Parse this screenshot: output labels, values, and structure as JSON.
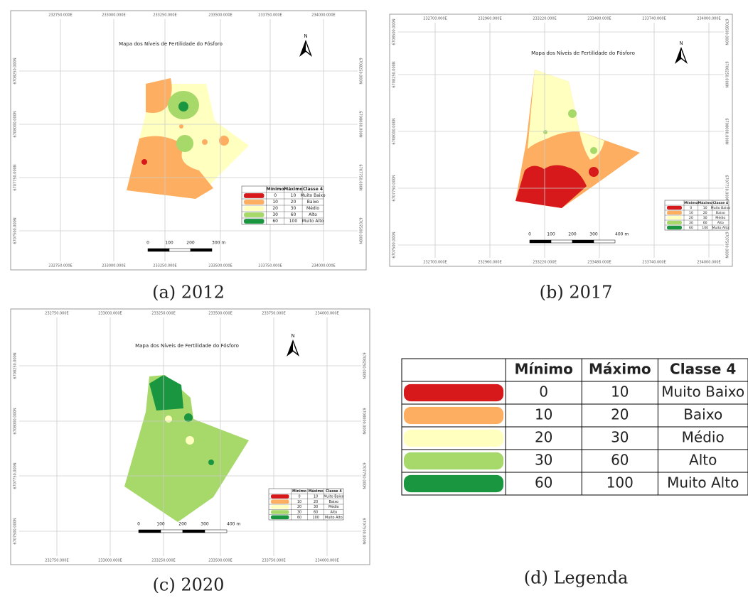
{
  "panels": [
    {
      "title": "Mapa dos Níveis de Fertilidade do Fósforo",
      "north": "N",
      "top_labels": [
        "232750.000E",
        "233000.000E",
        "233250.000E",
        "233500.000E",
        "233750.000E",
        "234000.000E"
      ],
      "side_labels": [
        "6708250.000N",
        "6708000.000N",
        "6707750.000N",
        "6707500.000N"
      ],
      "scale_labels": [
        "0",
        "100",
        "200",
        "300 m"
      ],
      "caption": "(a) 2012"
    },
    {
      "title": "Mapa dos Níveis de Fertilidade do Fósforo",
      "north": "N",
      "top_labels": [
        "232700.000E",
        "232960.000E",
        "233220.000E",
        "233480.000E",
        "233740.000E",
        "234000.000E"
      ],
      "side_labels": [
        "6708500.000N",
        "6708250.000N",
        "6708000.000N",
        "6707750.000N",
        "6707500.000N"
      ],
      "scale_labels": [
        "0",
        "100",
        "200",
        "300",
        "400 m"
      ],
      "caption": "(b) 2017"
    },
    {
      "title": "Mapa dos Níveis de Fertilidade do Fósforo",
      "north": "N",
      "top_labels": [
        "232750.000E",
        "233000.000E",
        "233250.000E",
        "233500.000E",
        "233750.000E",
        "234000.000E"
      ],
      "side_labels": [
        "6708250.000N",
        "6708000.000N",
        "6707750.000N",
        "6707500.000N"
      ],
      "scale_labels": [
        "0",
        "100",
        "200",
        "300",
        "400 m"
      ],
      "caption": "(c) 2020"
    }
  ],
  "legend": {
    "headers": [
      "Mínimo",
      "Máximo",
      "Classe 4"
    ],
    "rows": [
      [
        0,
        10,
        "Muito Baixo"
      ],
      [
        10,
        20,
        "Baixo"
      ],
      [
        20,
        30,
        "Médio"
      ],
      [
        30,
        60,
        "Alto"
      ],
      [
        60,
        100,
        "Muito Alto"
      ]
    ],
    "colors": [
      "#d7191c",
      "#fdae61",
      "#ffffbf",
      "#a6d96a",
      "#1a9641"
    ]
  },
  "legend_caption": "(d) Legenda"
}
